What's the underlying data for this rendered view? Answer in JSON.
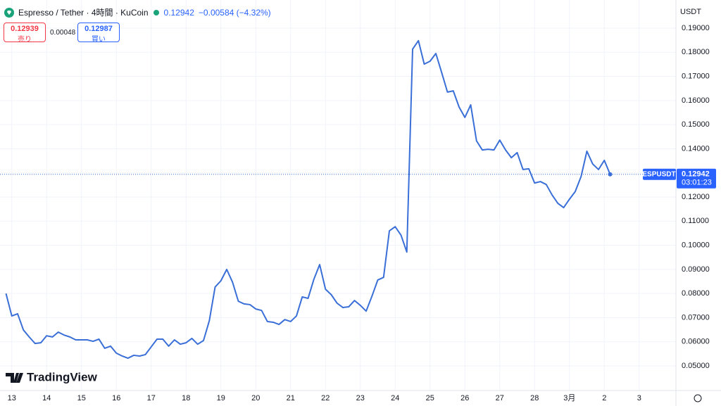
{
  "chart_data": {
    "type": "line",
    "title": "Espresso / Tether · 4時間 · KuCoin",
    "last_price": "0.12942",
    "change": "−0.00584 (−4.32%)",
    "sell_price": "0.12939",
    "sell_label": "売り",
    "spread": "0.00048",
    "buy_price": "0.12987",
    "buy_label": "買い",
    "currency": "USDT",
    "price_tag": "ESPUSDT",
    "countdown": "03:01:23",
    "brand": "TradingView",
    "color": "#3a6fd8",
    "grid": true,
    "values": [
      0.08,
      0.0707,
      0.0716,
      0.0649,
      0.062,
      0.0593,
      0.0596,
      0.0625,
      0.062,
      0.064,
      0.0628,
      0.062,
      0.0608,
      0.0608,
      0.0608,
      0.0602,
      0.0611,
      0.0573,
      0.0582,
      0.0553,
      0.0541,
      0.0532,
      0.0544,
      0.0541,
      0.0547,
      0.0579,
      0.0611,
      0.0611,
      0.0582,
      0.0608,
      0.059,
      0.0596,
      0.0614,
      0.059,
      0.0605,
      0.0687,
      0.0827,
      0.0853,
      0.09,
      0.0847,
      0.0768,
      0.0757,
      0.0754,
      0.0736,
      0.073,
      0.0684,
      0.0681,
      0.0672,
      0.0692,
      0.0684,
      0.0707,
      0.0786,
      0.078,
      0.0859,
      0.092,
      0.0818,
      0.0795,
      0.076,
      0.0742,
      0.0745,
      0.0771,
      0.0751,
      0.0727,
      0.0789,
      0.0856,
      0.0867,
      0.106,
      0.1077,
      0.1042,
      0.0972,
      0.1813,
      0.1848,
      0.1751,
      0.1763,
      0.1795,
      0.1716,
      0.1635,
      0.164,
      0.1573,
      0.153,
      0.1582,
      0.1433,
      0.1395,
      0.1398,
      0.1395,
      0.1436,
      0.1395,
      0.1363,
      0.1384,
      0.1314,
      0.1317,
      0.1258,
      0.1264,
      0.1252,
      0.1209,
      0.1174,
      0.1156,
      0.1191,
      0.1223,
      0.1285,
      0.139,
      0.1337,
      0.1314,
      0.1352,
      0.12942
    ],
    "xlim": [
      -1.03,
      115.33
    ],
    "xticks": [
      {
        "value": 1,
        "label": "13"
      },
      {
        "value": 7,
        "label": "14"
      },
      {
        "value": 13,
        "label": "15"
      },
      {
        "value": 19,
        "label": "16"
      },
      {
        "value": 25,
        "label": "17"
      },
      {
        "value": 31,
        "label": "18"
      },
      {
        "value": 37,
        "label": "19"
      },
      {
        "value": 43,
        "label": "20"
      },
      {
        "value": 49,
        "label": "21"
      },
      {
        "value": 55,
        "label": "22"
      },
      {
        "value": 61,
        "label": "23"
      },
      {
        "value": 67,
        "label": "24"
      },
      {
        "value": 73,
        "label": "25"
      },
      {
        "value": 79,
        "label": "26"
      },
      {
        "value": 85,
        "label": "27"
      },
      {
        "value": 91,
        "label": "28"
      },
      {
        "value": 97,
        "label": "3月"
      },
      {
        "value": 103,
        "label": "2"
      },
      {
        "value": 109,
        "label": "3"
      }
    ],
    "ylim": [
      0.0398,
      0.2005
    ],
    "yticks": [
      {
        "value": 0.05,
        "label": "0.05000"
      },
      {
        "value": 0.06,
        "label": "0.06000"
      },
      {
        "value": 0.07,
        "label": "0.07000"
      },
      {
        "value": 0.08,
        "label": "0.08000"
      },
      {
        "value": 0.09,
        "label": "0.09000"
      },
      {
        "value": 0.1,
        "label": "0.10000"
      },
      {
        "value": 0.11,
        "label": "0.11000"
      },
      {
        "value": 0.12,
        "label": "0.12000"
      },
      {
        "value": 0.13,
        "label": "0.13000"
      },
      {
        "value": 0.14,
        "label": "0.14000"
      },
      {
        "value": 0.15,
        "label": "0.15000"
      },
      {
        "value": 0.16,
        "label": "0.16000"
      },
      {
        "value": 0.17,
        "label": "0.17000"
      },
      {
        "value": 0.18,
        "label": "0.18000"
      },
      {
        "value": 0.19,
        "label": "0.19000"
      }
    ]
  }
}
